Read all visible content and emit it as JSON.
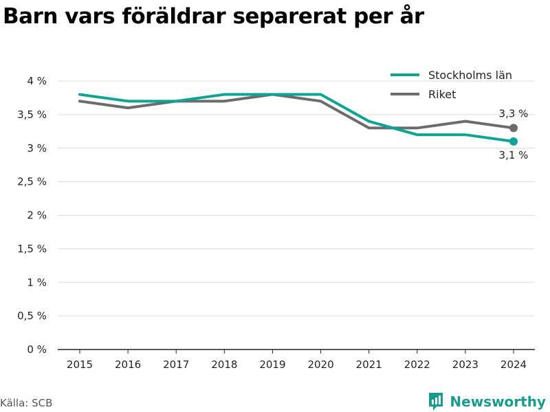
{
  "title": "Barn vars föräldrar separerat per år",
  "source": "Källa: SCB",
  "brand": {
    "name": "Newsworthy",
    "icon": "newsworthy-logo-icon"
  },
  "colors": {
    "stockholm": "#0fa396",
    "riket": "#6b6b6e",
    "grid": "#d9d9d9",
    "axis": "#222222",
    "brand": "#1a9a8a"
  },
  "chart_data": {
    "type": "line",
    "title": "Barn vars föräldrar separerat per år",
    "xlabel": "",
    "ylabel": "",
    "categories": [
      "2015",
      "2016",
      "2017",
      "2018",
      "2019",
      "2020",
      "2021",
      "2022",
      "2023",
      "2024"
    ],
    "y_ticks": [
      "0 %",
      "0,5 %",
      "1 %",
      "1,5 %",
      "2 %",
      "2,5 %",
      "3 %",
      "3,5 %",
      "4 %"
    ],
    "ylim": [
      0,
      4
    ],
    "grid": true,
    "legend_position": "top-right",
    "series": [
      {
        "name": "Stockholms län",
        "color": "#0fa396",
        "values": [
          3.8,
          3.7,
          3.7,
          3.8,
          3.8,
          3.8,
          3.4,
          3.2,
          3.2,
          3.1
        ],
        "end_label": "3,1 %"
      },
      {
        "name": "Riket",
        "color": "#6b6b6e",
        "values": [
          3.7,
          3.6,
          3.7,
          3.7,
          3.8,
          3.7,
          3.3,
          3.3,
          3.4,
          3.3
        ],
        "end_label": "3,3 %"
      }
    ]
  }
}
